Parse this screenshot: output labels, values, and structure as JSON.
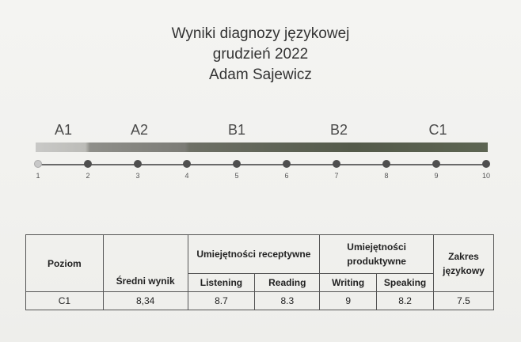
{
  "header": {
    "title": "Wyniki diagnozy językowej",
    "date": "grudzień 2022",
    "name": "Adam Sajewicz"
  },
  "levels": [
    "A1",
    "A2",
    "B1",
    "B2",
    "C1"
  ],
  "scale": {
    "ticks": [
      "1",
      "2",
      "3",
      "4",
      "5",
      "6",
      "7",
      "8",
      "9",
      "10"
    ]
  },
  "table": {
    "col_poziom": "Poziom",
    "col_sredni": "Średni wynik",
    "col_receptywne": "Umiejętności receptywne",
    "col_produktywne": "Umiejętności produktywne",
    "col_zakres": "Zakres językowy",
    "sub_listening": "Listening",
    "sub_reading": "Reading",
    "sub_writing": "Writing",
    "sub_speaking": "Speaking",
    "row": {
      "poziom": "C1",
      "sredni": "8,34",
      "listening": "8.7",
      "reading": "8.3",
      "writing": "9",
      "speaking": "8.2",
      "zakres": "7.5"
    }
  }
}
